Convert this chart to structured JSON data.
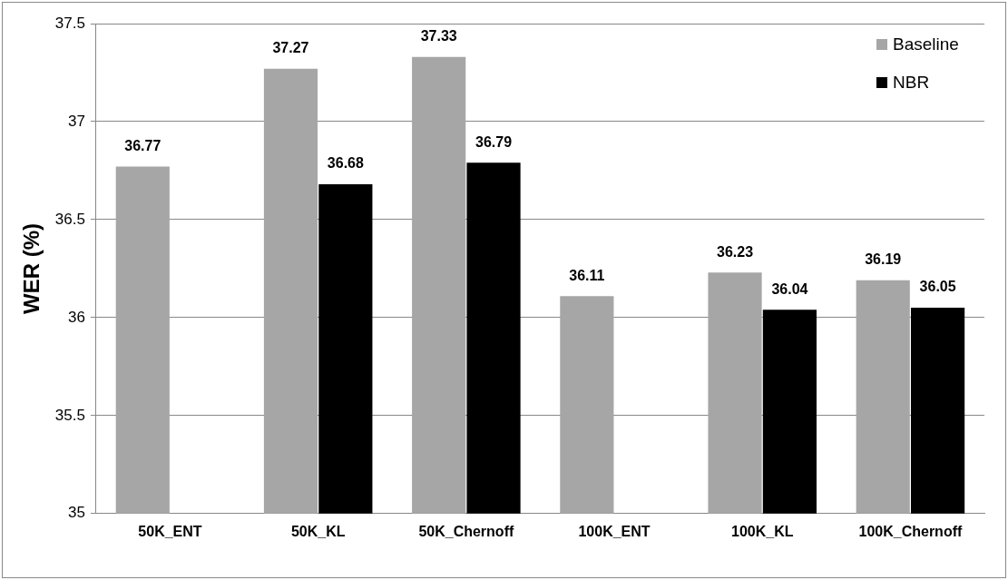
{
  "chart_data": {
    "type": "bar",
    "ylabel": "WER (%)",
    "categories": [
      "50K_ENT",
      "50K_KL",
      "50K_Chernoff",
      "100K_ENT",
      "100K_KL",
      "100K_Chernoff"
    ],
    "series": [
      {
        "name": "Baseline",
        "color": "#a6a6a6",
        "values": [
          36.77,
          37.27,
          37.33,
          36.11,
          36.23,
          36.19
        ]
      },
      {
        "name": "NBR",
        "color": "#000000",
        "values": [
          null,
          36.68,
          36.79,
          null,
          36.04,
          36.05
        ]
      }
    ],
    "ylim": [
      35,
      37.5
    ],
    "yticks": [
      35,
      35.5,
      36,
      36.5,
      37,
      37.5
    ],
    "grid": "y",
    "legend": "top right",
    "data_labels": true
  }
}
